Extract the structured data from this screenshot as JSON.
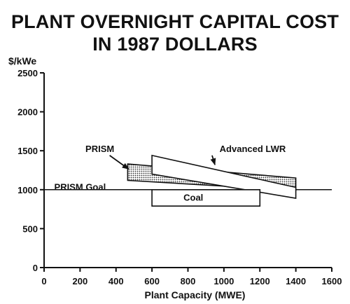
{
  "title_line1": "PLANT OVERNIGHT CAPITAL COST",
  "title_line2": "IN 1987 DOLLARS",
  "chart_data": {
    "type": "area",
    "ylabel": "$/kWe",
    "xlabel": "Plant Capacity (MWE)",
    "xlim": [
      0,
      1600
    ],
    "ylim": [
      0,
      2500
    ],
    "x_ticks": [
      0,
      200,
      400,
      600,
      800,
      1000,
      1200,
      1400,
      1600
    ],
    "y_ticks": [
      0,
      500,
      1000,
      1500,
      2000,
      2500
    ],
    "grid": false,
    "series": [
      {
        "name": "PRISM",
        "fill": "dotted",
        "polygon": [
          [
            465,
            1330
          ],
          [
            1400,
            1150
          ],
          [
            1400,
            990
          ],
          [
            465,
            1120
          ]
        ]
      },
      {
        "name": "Advanced LWR",
        "fill": "white",
        "polygon": [
          [
            600,
            1440
          ],
          [
            1400,
            1030
          ],
          [
            1400,
            890
          ],
          [
            600,
            1200
          ]
        ]
      },
      {
        "name": "Coal",
        "fill": "white",
        "polygon": [
          [
            600,
            1000
          ],
          [
            1200,
            1000
          ],
          [
            1200,
            790
          ],
          [
            600,
            790
          ]
        ]
      }
    ],
    "reference_lines": [
      {
        "name": "PRISM Goal",
        "y": 1000
      }
    ],
    "annotations": [
      {
        "text": "PRISM",
        "label_at": [
          310,
          1530
        ],
        "arrow_to": [
          470,
          1265
        ]
      },
      {
        "text": "Advanced LWR",
        "label_at": [
          1160,
          1530
        ],
        "arrow_to": [
          950,
          1320
        ]
      },
      {
        "text": "PRISM Goal",
        "label_at": [
          200,
          1040
        ]
      },
      {
        "text": "Coal",
        "label_at": [
          830,
          905
        ]
      }
    ]
  }
}
